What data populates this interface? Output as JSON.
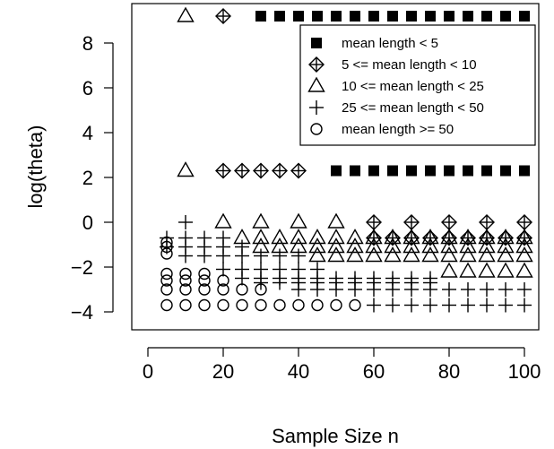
{
  "chart_data": {
    "type": "scatter",
    "title": "",
    "xlabel": "Sample Size n",
    "ylabel": "log(theta)",
    "xlim": [
      4,
      102
    ],
    "ylim": [
      -4.1,
      9.3
    ],
    "x_ticks": [
      0,
      20,
      40,
      60,
      80,
      100
    ],
    "y_ticks": [
      -4,
      -2,
      0,
      2,
      4,
      6,
      8
    ],
    "legend_position": "top-right",
    "series": [
      {
        "name": "mean length < 5",
        "marker": "filled-square",
        "points": [
          [
            30,
            9.2
          ],
          [
            35,
            9.2
          ],
          [
            40,
            9.2
          ],
          [
            45,
            9.2
          ],
          [
            50,
            9.2
          ],
          [
            55,
            9.2
          ],
          [
            60,
            9.2
          ],
          [
            65,
            9.2
          ],
          [
            70,
            9.2
          ],
          [
            75,
            9.2
          ],
          [
            80,
            9.2
          ],
          [
            85,
            9.2
          ],
          [
            90,
            9.2
          ],
          [
            95,
            9.2
          ],
          [
            100,
            9.2
          ],
          [
            50,
            2.3
          ],
          [
            55,
            2.3
          ],
          [
            60,
            2.3
          ],
          [
            65,
            2.3
          ],
          [
            70,
            2.3
          ],
          [
            75,
            2.3
          ],
          [
            80,
            2.3
          ],
          [
            85,
            2.3
          ],
          [
            90,
            2.3
          ],
          [
            95,
            2.3
          ],
          [
            100,
            2.3
          ]
        ]
      },
      {
        "name": "5 <= mean length < 10",
        "marker": "diamond-plus",
        "points": [
          [
            20,
            9.2
          ],
          [
            20,
            2.3
          ],
          [
            25,
            2.3
          ],
          [
            30,
            2.3
          ],
          [
            35,
            2.3
          ],
          [
            40,
            2.3
          ],
          [
            60,
            0.0
          ],
          [
            70,
            0.0
          ],
          [
            80,
            0.0
          ],
          [
            90,
            0.0
          ],
          [
            100,
            0.0
          ],
          [
            60,
            -0.7
          ],
          [
            65,
            -0.7
          ],
          [
            70,
            -0.7
          ],
          [
            75,
            -0.7
          ],
          [
            80,
            -0.7
          ],
          [
            85,
            -0.7
          ],
          [
            90,
            -0.7
          ],
          [
            95,
            -0.7
          ],
          [
            100,
            -0.7
          ]
        ]
      },
      {
        "name": "10 <= mean length < 25",
        "marker": "open-triangle",
        "points": [
          [
            10,
            9.2
          ],
          [
            10,
            2.3
          ],
          [
            20,
            0.0
          ],
          [
            30,
            0.0
          ],
          [
            40,
            0.0
          ],
          [
            50,
            0.0
          ],
          [
            25,
            -0.7
          ],
          [
            30,
            -0.7
          ],
          [
            35,
            -0.7
          ],
          [
            40,
            -0.7
          ],
          [
            45,
            -0.7
          ],
          [
            50,
            -0.7
          ],
          [
            55,
            -0.7
          ],
          [
            60,
            -0.7
          ],
          [
            65,
            -0.7
          ],
          [
            70,
            -0.7
          ],
          [
            75,
            -0.7
          ],
          [
            80,
            -0.7
          ],
          [
            85,
            -0.7
          ],
          [
            90,
            -0.7
          ],
          [
            95,
            -0.7
          ],
          [
            100,
            -0.7
          ],
          [
            30,
            -1.1
          ],
          [
            35,
            -1.1
          ],
          [
            40,
            -1.1
          ],
          [
            45,
            -1.1
          ],
          [
            50,
            -1.1
          ],
          [
            55,
            -1.1
          ],
          [
            60,
            -1.1
          ],
          [
            65,
            -1.1
          ],
          [
            70,
            -1.1
          ],
          [
            75,
            -1.1
          ],
          [
            80,
            -1.1
          ],
          [
            85,
            -1.1
          ],
          [
            90,
            -1.1
          ],
          [
            95,
            -1.1
          ],
          [
            100,
            -1.1
          ],
          [
            45,
            -1.5
          ],
          [
            50,
            -1.5
          ],
          [
            55,
            -1.5
          ],
          [
            60,
            -1.5
          ],
          [
            65,
            -1.5
          ],
          [
            70,
            -1.5
          ],
          [
            75,
            -1.5
          ],
          [
            80,
            -1.5
          ],
          [
            85,
            -1.5
          ],
          [
            90,
            -1.5
          ],
          [
            95,
            -1.5
          ],
          [
            100,
            -1.5
          ],
          [
            80,
            -2.2
          ],
          [
            85,
            -2.2
          ],
          [
            90,
            -2.2
          ],
          [
            95,
            -2.2
          ],
          [
            100,
            -2.2
          ]
        ]
      },
      {
        "name": "25 <= mean length < 50",
        "marker": "plus",
        "points": [
          [
            10,
            0.0
          ],
          [
            5,
            -0.7
          ],
          [
            10,
            -0.7
          ],
          [
            15,
            -0.7
          ],
          [
            20,
            -0.7
          ],
          [
            5,
            -1.1
          ],
          [
            10,
            -1.1
          ],
          [
            15,
            -1.1
          ],
          [
            20,
            -1.1
          ],
          [
            25,
            -1.1
          ],
          [
            10,
            -1.5
          ],
          [
            15,
            -1.5
          ],
          [
            20,
            -1.5
          ],
          [
            25,
            -1.5
          ],
          [
            30,
            -1.5
          ],
          [
            35,
            -1.5
          ],
          [
            40,
            -1.5
          ],
          [
            20,
            -2.1
          ],
          [
            25,
            -2.1
          ],
          [
            30,
            -2.1
          ],
          [
            35,
            -2.1
          ],
          [
            40,
            -2.1
          ],
          [
            45,
            -2.1
          ],
          [
            25,
            -2.5
          ],
          [
            30,
            -2.5
          ],
          [
            35,
            -2.5
          ],
          [
            40,
            -2.5
          ],
          [
            45,
            -2.5
          ],
          [
            50,
            -2.5
          ],
          [
            55,
            -2.5
          ],
          [
            60,
            -2.5
          ],
          [
            65,
            -2.5
          ],
          [
            70,
            -2.5
          ],
          [
            75,
            -2.5
          ],
          [
            30,
            -2.7
          ],
          [
            35,
            -2.7
          ],
          [
            40,
            -2.7
          ],
          [
            45,
            -2.7
          ],
          [
            50,
            -2.7
          ],
          [
            55,
            -2.7
          ],
          [
            60,
            -2.7
          ],
          [
            65,
            -2.7
          ],
          [
            70,
            -2.7
          ],
          [
            75,
            -2.7
          ],
          [
            40,
            -3.0
          ],
          [
            45,
            -3.0
          ],
          [
            50,
            -3.0
          ],
          [
            55,
            -3.0
          ],
          [
            60,
            -3.0
          ],
          [
            65,
            -3.0
          ],
          [
            70,
            -3.0
          ],
          [
            75,
            -3.0
          ],
          [
            80,
            -3.0
          ],
          [
            85,
            -3.0
          ],
          [
            90,
            -3.0
          ],
          [
            95,
            -3.0
          ],
          [
            100,
            -3.0
          ],
          [
            60,
            -3.7
          ],
          [
            65,
            -3.7
          ],
          [
            70,
            -3.7
          ],
          [
            75,
            -3.7
          ],
          [
            80,
            -3.7
          ],
          [
            85,
            -3.7
          ],
          [
            90,
            -3.7
          ],
          [
            95,
            -3.7
          ],
          [
            100,
            -3.7
          ]
        ]
      },
      {
        "name": "mean length >= 50",
        "marker": "open-circle",
        "points": [
          [
            5,
            -0.9
          ],
          [
            5,
            -1.1
          ],
          [
            5,
            -1.4
          ],
          [
            5,
            -2.3
          ],
          [
            10,
            -2.3
          ],
          [
            15,
            -2.3
          ],
          [
            5,
            -2.6
          ],
          [
            10,
            -2.6
          ],
          [
            15,
            -2.6
          ],
          [
            20,
            -2.6
          ],
          [
            5,
            -3.0
          ],
          [
            10,
            -3.0
          ],
          [
            15,
            -3.0
          ],
          [
            20,
            -3.0
          ],
          [
            25,
            -3.0
          ],
          [
            30,
            -3.0
          ],
          [
            5,
            -3.7
          ],
          [
            10,
            -3.7
          ],
          [
            15,
            -3.7
          ],
          [
            20,
            -3.7
          ],
          [
            25,
            -3.7
          ],
          [
            30,
            -3.7
          ],
          [
            35,
            -3.7
          ],
          [
            40,
            -3.7
          ],
          [
            45,
            -3.7
          ],
          [
            50,
            -3.7
          ],
          [
            55,
            -3.7
          ]
        ]
      }
    ]
  }
}
